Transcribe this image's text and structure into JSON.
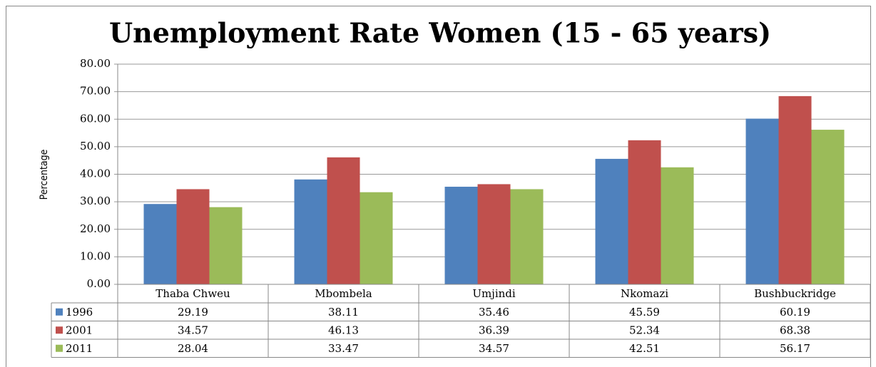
{
  "chart_data": {
    "type": "bar",
    "title": "Unemployment Rate Women (15 - 65 years)",
    "y_label": "Percentage",
    "categories": [
      "Thaba Chweu",
      "Mbombela",
      "Umjindi",
      "Nkomazi",
      "Bushbuckridge"
    ],
    "series": [
      {
        "name": "1996",
        "color": "#4f81bd",
        "values": [
          29.19,
          38.11,
          35.46,
          45.59,
          60.19
        ]
      },
      {
        "name": "2001",
        "color": "#c0504d",
        "values": [
          34.57,
          46.13,
          36.39,
          52.34,
          68.38
        ]
      },
      {
        "name": "2011",
        "color": "#9bbb59",
        "values": [
          28.04,
          33.47,
          34.57,
          42.51,
          56.17
        ]
      }
    ],
    "ylim": [
      0,
      80
    ],
    "yticks": [
      {
        "value": 0,
        "label": "0.00"
      },
      {
        "value": 10,
        "label": "10.00"
      },
      {
        "value": 20,
        "label": "20.00"
      },
      {
        "value": 30,
        "label": "30.00"
      },
      {
        "value": 40,
        "label": "40.00"
      },
      {
        "value": 50,
        "label": "50.00"
      },
      {
        "value": 60,
        "label": "60.00"
      },
      {
        "value": 70,
        "label": "70.00"
      },
      {
        "value": 80,
        "label": "80.00"
      }
    ],
    "grid": true
  }
}
